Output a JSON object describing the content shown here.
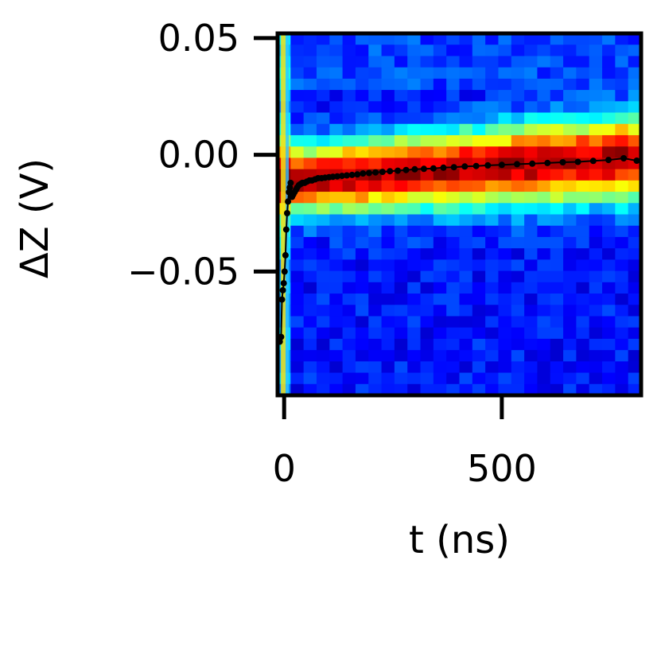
{
  "chart_data": {
    "type": "heatmap",
    "title": "",
    "xlabel": "t (ns)",
    "ylabel": "ΔZ (V)",
    "xlim": [
      -15,
      820
    ],
    "ylim": [
      -0.103,
      0.052
    ],
    "xticks": [
      0,
      500
    ],
    "xtick_labels": [
      "0",
      "500"
    ],
    "yticks": [
      0.05,
      0.0,
      -0.05
    ],
    "ytick_labels": [
      "0.05",
      "0.00",
      "−0.05"
    ],
    "colormap": "jet",
    "grid": false,
    "heatmap": {
      "description_band_center_V": -0.011,
      "band_center_end_V": -0.001,
      "band_width_V": 0.018,
      "transient_column_t_ns": -2
    },
    "series": [
      {
        "marker_color": "#000000",
        "x": [
          -10,
          -7,
          -5,
          -3,
          -1,
          1,
          3,
          5,
          7,
          9,
          11,
          13,
          15,
          18,
          21,
          24,
          27,
          30,
          34,
          38,
          42,
          47,
          52,
          58,
          64,
          71,
          78,
          86,
          94,
          103,
          112,
          122,
          133,
          144,
          156,
          168,
          181,
          195,
          210,
          226,
          243,
          261,
          280,
          300,
          321,
          343,
          366,
          390,
          415,
          441,
          468,
          500,
          535,
          570,
          605,
          640,
          675,
          710,
          745,
          780,
          810
        ],
        "y": [
          -0.08,
          -0.078,
          -0.062,
          -0.058,
          -0.055,
          -0.05,
          -0.043,
          -0.032,
          -0.025,
          -0.02,
          -0.016,
          -0.014,
          -0.012,
          -0.018,
          -0.017,
          -0.016,
          -0.015,
          -0.014,
          -0.013,
          -0.0125,
          -0.012,
          -0.012,
          -0.0115,
          -0.011,
          -0.011,
          -0.0105,
          -0.01,
          -0.01,
          -0.0098,
          -0.0096,
          -0.0094,
          -0.0092,
          -0.009,
          -0.0088,
          -0.0086,
          -0.0084,
          -0.008,
          -0.0078,
          -0.0075,
          -0.0073,
          -0.007,
          -0.0068,
          -0.0065,
          -0.0062,
          -0.006,
          -0.0058,
          -0.0055,
          -0.0053,
          -0.005,
          -0.0048,
          -0.0045,
          -0.0043,
          -0.004,
          -0.0038,
          -0.0035,
          -0.0032,
          -0.003,
          -0.0026,
          -0.0022,
          -0.0015,
          -0.0025
        ]
      }
    ]
  },
  "colors": {
    "axis": "#000000",
    "trace": "#000000",
    "transient_stripe": "#f2e21a"
  }
}
